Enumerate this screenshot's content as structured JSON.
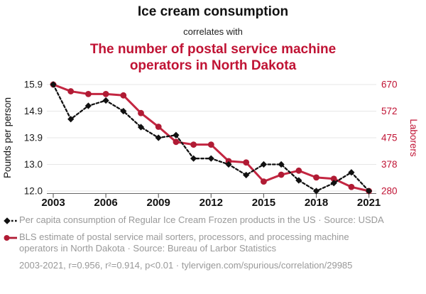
{
  "header": {
    "title": "Ice cream consumption",
    "connector": "correlates with",
    "subtitle": "The number of postal service machine operators in North Dakota"
  },
  "colors": {
    "accent_red": "#c01334",
    "series_red_line": "#c32641",
    "series_red_marker": "#b01b34",
    "series_black": "#111111",
    "legend_gray": "#999999",
    "grid_gray": "#e7e7e7",
    "axis_gray": "#666666"
  },
  "chart_data": {
    "type": "line",
    "x": [
      2003,
      2004,
      2005,
      2006,
      2007,
      2008,
      2009,
      2010,
      2011,
      2012,
      2013,
      2014,
      2015,
      2016,
      2017,
      2018,
      2019,
      2020,
      2021
    ],
    "x_tick_labels": [
      2003,
      2006,
      2009,
      2012,
      2015,
      2018,
      2021
    ],
    "left_axis": {
      "label": "Pounds per person",
      "ticks": [
        15.9,
        14.9,
        13.9,
        13.0,
        12.0
      ],
      "tick_labels": [
        "15.9",
        "14.9",
        "13.9",
        "13.0",
        "12.0"
      ]
    },
    "right_axis": {
      "label": "Laborers",
      "ticks": [
        670,
        572,
        475,
        378,
        280
      ],
      "tick_labels": [
        "670",
        "572",
        "475",
        "378",
        "280"
      ]
    },
    "grid": true,
    "legend_position": "below",
    "series": [
      {
        "name": "Per capita consumption of Regular Ice Cream Frozen products in the US",
        "axis": "left",
        "marker": "diamond",
        "line_style": "dashed",
        "values": [
          15.9,
          14.6,
          15.1,
          15.3,
          14.9,
          14.3,
          13.9,
          14.0,
          13.2,
          13.2,
          13.0,
          12.6,
          13.0,
          13.0,
          12.4,
          12.0,
          12.3,
          12.7,
          12.0
        ]
      },
      {
        "name": "BLS estimate of postal service mail sorters, processors, and processing machine operators in North Dakota",
        "axis": "right",
        "marker": "circle",
        "line_style": "solid",
        "values": [
          670,
          645,
          635,
          635,
          630,
          565,
          515,
          460,
          450,
          450,
          390,
          385,
          315,
          340,
          355,
          330,
          325,
          295,
          280
        ]
      }
    ]
  },
  "legend": {
    "entries": [
      {
        "text": "Per capita consumption of Regular Ice Cream Frozen products in the US · Source: USDA"
      },
      {
        "text": "BLS estimate of postal service mail sorters, processors, and processing machine operators in North Dakota · Source: Bureau of Larbor Statistics"
      }
    ]
  },
  "footer": {
    "text": "2003-2021, r=0.956, r²=0.914, p<0.01 · tylervigen.com/spurious/correlation/29985"
  }
}
